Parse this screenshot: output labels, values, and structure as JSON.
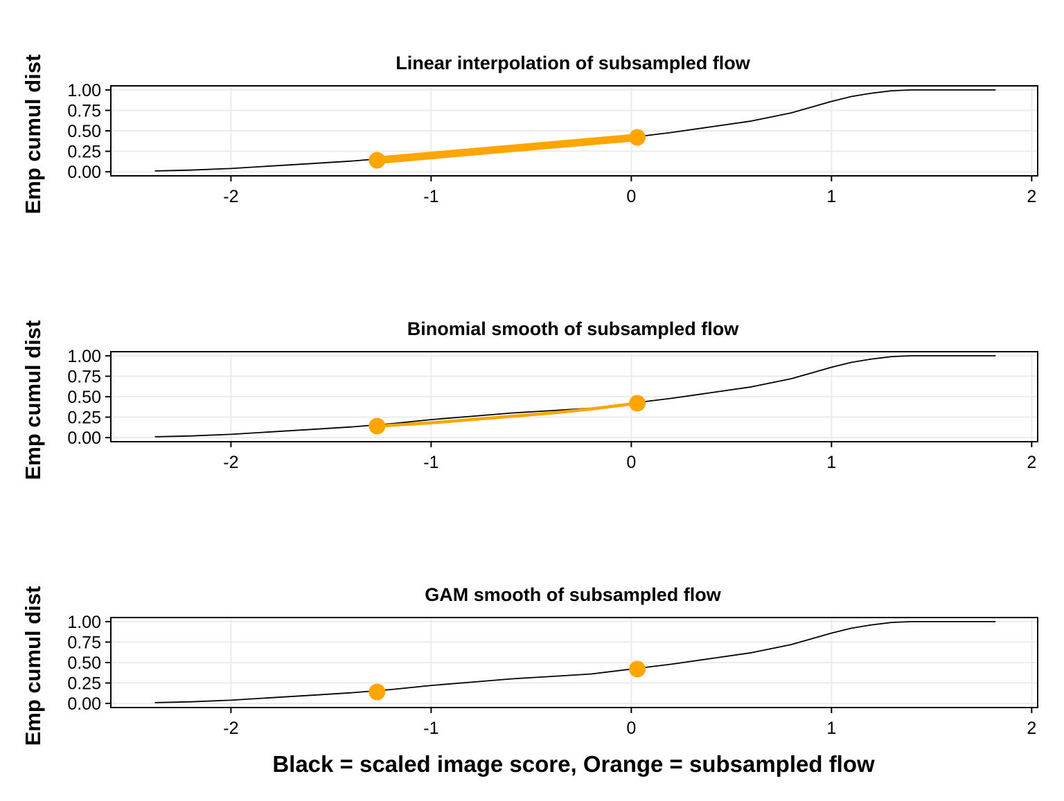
{
  "chart_data": {
    "type": "line",
    "xlabel": "Black = scaled image score, Orange = subsampled flow",
    "ylabel": "Emp cumul dist",
    "xlim": [
      -2.6,
      2.03
    ],
    "ylim": [
      -0.05,
      1.05
    ],
    "x_ticks": [
      -2,
      -1,
      0,
      1,
      2
    ],
    "x_tick_labels": [
      "-2",
      "-1",
      "0",
      "1",
      "2"
    ],
    "y_ticks": [
      0,
      0.25,
      0.5,
      0.75,
      1
    ],
    "y_tick_labels": [
      "0.00",
      "0.25",
      "0.50",
      "0.75",
      "1.00"
    ],
    "grid": true,
    "colors": {
      "black_series": "#000000",
      "orange_series": "#FFA500",
      "grid": "#ebebeb"
    },
    "black_curve": {
      "name": "scaled image score",
      "x": [
        -2.38,
        -2.2,
        -2.0,
        -1.8,
        -1.6,
        -1.4,
        -1.2,
        -1.0,
        -0.8,
        -0.6,
        -0.4,
        -0.2,
        0.0,
        0.2,
        0.4,
        0.6,
        0.7,
        0.8,
        0.9,
        1.0,
        1.1,
        1.2,
        1.3,
        1.4,
        1.5,
        1.6,
        1.82
      ],
      "y": [
        0.01,
        0.02,
        0.04,
        0.07,
        0.1,
        0.13,
        0.17,
        0.22,
        0.26,
        0.3,
        0.33,
        0.36,
        0.42,
        0.48,
        0.55,
        0.62,
        0.67,
        0.72,
        0.79,
        0.86,
        0.92,
        0.96,
        0.99,
        1.0,
        1.0,
        1.0,
        1.0
      ]
    },
    "panels": [
      {
        "title": "Linear interpolation of subsampled flow",
        "orange_points": {
          "x": [
            -1.27,
            0.03
          ],
          "y": [
            0.14,
            0.42
          ]
        },
        "orange_line": {
          "x": [
            -1.27,
            0.03
          ],
          "y": [
            0.14,
            0.42
          ],
          "style": "thick"
        }
      },
      {
        "title": "Binomial smooth of subsampled flow",
        "orange_points": {
          "x": [
            -1.27,
            0.03
          ],
          "y": [
            0.14,
            0.42
          ]
        },
        "orange_line": {
          "x": [
            -1.27,
            -1.0,
            -0.8,
            -0.6,
            -0.4,
            -0.2,
            0.03
          ],
          "y": [
            0.14,
            0.18,
            0.22,
            0.26,
            0.3,
            0.35,
            0.42
          ],
          "style": "medium"
        }
      },
      {
        "title": "GAM smooth of subsampled flow",
        "orange_points": {
          "x": [
            -1.27,
            0.03
          ],
          "y": [
            0.14,
            0.42
          ]
        }
      }
    ]
  }
}
